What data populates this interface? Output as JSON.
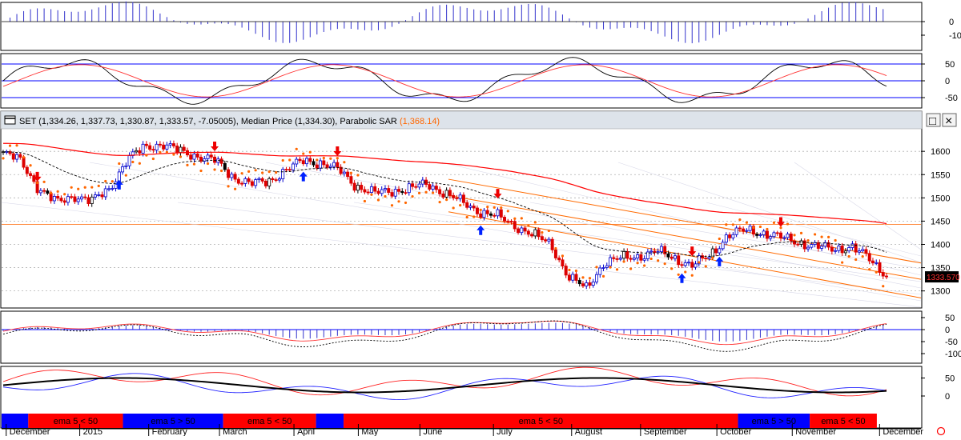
{
  "chart_data": {
    "type": "line",
    "main_title": {
      "symbol_label": "SET (1,334.26, 1,337.73, 1,330.87, 1,333.57, -7.05005), Median Price (1,334.30), Parabolic SAR",
      "sar_value": "(1,368.14)"
    },
    "window_buttons": {
      "maximize": "□",
      "close": "×"
    },
    "last_price_label": "1333.570",
    "main_y_ticks": [
      "1600",
      "1550",
      "1500",
      "1450",
      "1400",
      "1350",
      "1300"
    ],
    "main_y_values": [
      1600,
      1550,
      1500,
      1450,
      1400,
      1350,
      1300
    ],
    "main_ylim": [
      1265,
      1645
    ],
    "series": [
      {
        "name": "SET",
        "x": [
          0,
          0.02,
          0.04,
          0.06,
          0.08,
          0.1,
          0.12,
          0.14,
          0.16,
          0.18,
          0.2,
          0.22,
          0.24,
          0.26,
          0.28,
          0.3,
          0.32,
          0.34,
          0.36,
          0.38,
          0.4,
          0.42,
          0.44,
          0.46,
          0.48,
          0.5,
          0.52,
          0.54,
          0.56,
          0.58,
          0.6,
          0.62,
          0.64,
          0.66,
          0.68,
          0.7,
          0.72,
          0.74,
          0.76,
          0.78,
          0.8,
          0.82,
          0.84,
          0.86,
          0.88,
          0.9,
          0.92,
          0.94,
          0.96,
          0.98,
          1.0
        ],
        "values": [
          1596,
          1580,
          1520,
          1490,
          1505,
          1492,
          1520,
          1580,
          1610,
          1615,
          1600,
          1590,
          1580,
          1545,
          1530,
          1535,
          1560,
          1580,
          1575,
          1560,
          1525,
          1510,
          1515,
          1520,
          1530,
          1510,
          1490,
          1470,
          1460,
          1440,
          1420,
          1400,
          1330,
          1305,
          1360,
          1370,
          1375,
          1385,
          1370,
          1355,
          1375,
          1420,
          1430,
          1425,
          1415,
          1405,
          1395,
          1390,
          1395,
          1370,
          1334
        ]
      }
    ],
    "panels": {
      "top_osc_ticks": [
        "0",
        "-10"
      ],
      "top_osc_values": [
        0,
        -10
      ],
      "cci_ticks": [
        "50",
        "0",
        "-50"
      ],
      "cci_values": [
        50,
        0,
        -50
      ],
      "macd_ticks": [
        "50",
        "0",
        "-50",
        "-100"
      ],
      "macd_values": [
        50,
        0,
        -50,
        -100
      ],
      "bottom_ticks": [
        "50",
        "0"
      ],
      "bottom_values": [
        50,
        0
      ]
    },
    "ema_band": [
      {
        "label": "",
        "color": "#0000ff",
        "start": 0.0,
        "end": 0.029
      },
      {
        "label": "ema 5 < 50",
        "color": "#ff0000",
        "start": 0.029,
        "end": 0.132
      },
      {
        "label": "ema 5 > 50",
        "color": "#0000ff",
        "start": 0.132,
        "end": 0.241
      },
      {
        "label": "ema 5 < 50",
        "color": "#ff0000",
        "start": 0.241,
        "end": 0.342
      },
      {
        "label": "",
        "color": "#0000ff",
        "start": 0.342,
        "end": 0.372
      },
      {
        "label": "ema 5 < 50",
        "color": "#ff0000",
        "start": 0.372,
        "end": 0.801
      },
      {
        "label": "ema 5 > 50",
        "color": "#0000ff",
        "start": 0.801,
        "end": 0.879
      },
      {
        "label": "ema 5 < 50",
        "color": "#ff0000",
        "start": 0.879,
        "end": 0.952
      }
    ],
    "x_ticks": [
      "December",
      "2015",
      "February",
      "March",
      "April",
      "May",
      "June",
      "July",
      "August",
      "September",
      "October",
      "November",
      "December"
    ],
    "x_tick_pos": [
      0.005,
      0.085,
      0.16,
      0.237,
      0.318,
      0.388,
      0.455,
      0.535,
      0.62,
      0.695,
      0.778,
      0.86,
      0.955
    ],
    "colors": {
      "up": "#0000cc",
      "down": "#dd0000",
      "neutral": "#000000",
      "sar": "#ff6600",
      "ema": "#ff0000",
      "grid": "#b0b0b0"
    }
  }
}
